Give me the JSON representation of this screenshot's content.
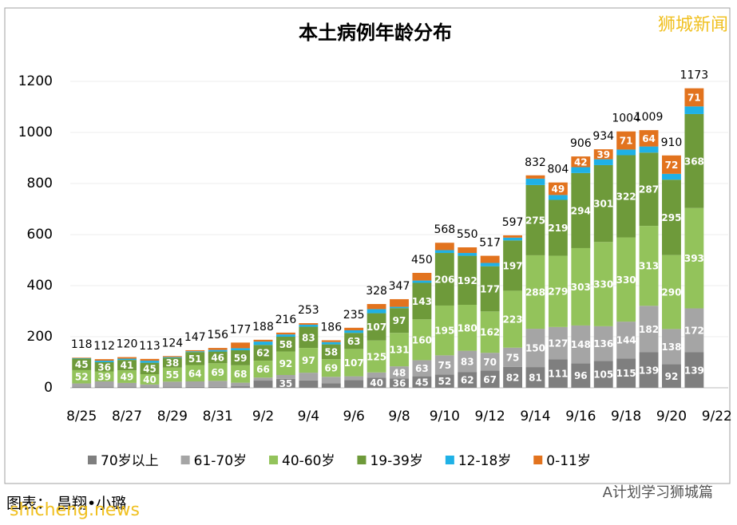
{
  "chart_data": {
    "type": "stacked-bar",
    "title": "本土病例年龄分布",
    "watermark": "狮城新闻",
    "footer": {
      "credit": "图表： 昌翔•小璐",
      "site": "shicheng.news",
      "account": "A计划学习狮城篇"
    },
    "categories": [
      "8/25",
      null,
      "8/27",
      null,
      "8/29",
      null,
      "8/31",
      null,
      "9/2",
      null,
      "9/4",
      null,
      "9/6",
      null,
      "9/8",
      null,
      "9/10",
      null,
      "9/12",
      null,
      "9/14",
      null,
      "9/16",
      null,
      "9/18",
      null,
      "9/20",
      null,
      "9/22"
    ],
    "totals": [
      118,
      112,
      120,
      113,
      124,
      147,
      156,
      177,
      188,
      216,
      253,
      186,
      235,
      328,
      347,
      450,
      568,
      550,
      517,
      597,
      832,
      804,
      906,
      934,
      1004,
      1009,
      910,
      1173,
      null
    ],
    "series": [
      {
        "name": "70岁以上",
        "color": "#7f7f7f",
        "values": [
          3,
          3,
          3,
          3,
          3,
          4,
          4,
          6,
          28,
          35,
          29,
          18,
          30,
          40,
          36,
          45,
          52,
          62,
          67,
          82,
          81,
          111,
          96,
          105,
          115,
          139,
          92,
          139,
          null
        ]
      },
      {
        "name": "61-70岁",
        "color": "#a5a5a5",
        "values": [
          14,
          22,
          16,
          10,
          21,
          21,
          23,
          14,
          12,
          15,
          30,
          25,
          15,
          20,
          48,
          63,
          75,
          83,
          70,
          75,
          150,
          127,
          148,
          136,
          144,
          182,
          138,
          172,
          null
        ]
      },
      {
        "name": "40-60岁",
        "color": "#93c35b",
        "values": [
          52,
          39,
          49,
          40,
          55,
          64,
          69,
          68,
          66,
          92,
          97,
          69,
          107,
          125,
          131,
          160,
          195,
          180,
          162,
          223,
          288,
          279,
          303,
          330,
          330,
          313,
          290,
          393,
          null
        ]
      },
      {
        "name": "19-39岁",
        "color": "#6e9a3a",
        "values": [
          45,
          36,
          41,
          45,
          38,
          51,
          46,
          59,
          62,
          58,
          83,
          58,
          63,
          107,
          97,
          143,
          206,
          192,
          177,
          197,
          275,
          219,
          294,
          301,
          322,
          287,
          295,
          368,
          null
        ]
      },
      {
        "name": "12-18岁",
        "color": "#1fb1e6",
        "values": [
          2,
          6,
          5,
          8,
          3,
          3,
          6,
          8,
          13,
          9,
          8,
          9,
          10,
          16,
          5,
          9,
          11,
          11,
          13,
          11,
          25,
          19,
          23,
          23,
          22,
          24,
          23,
          30,
          null
        ]
      },
      {
        "name": "0-11岁",
        "color": "#e2731e",
        "values": [
          2,
          6,
          6,
          7,
          4,
          4,
          8,
          22,
          7,
          7,
          6,
          7,
          10,
          20,
          30,
          30,
          29,
          22,
          28,
          9,
          13,
          49,
          42,
          39,
          71,
          64,
          72,
          71,
          null
        ]
      }
    ],
    "ylim": [
      0,
      1300
    ],
    "yticks": [
      0,
      200,
      400,
      600,
      800,
      1000,
      1200
    ],
    "grid": true
  }
}
